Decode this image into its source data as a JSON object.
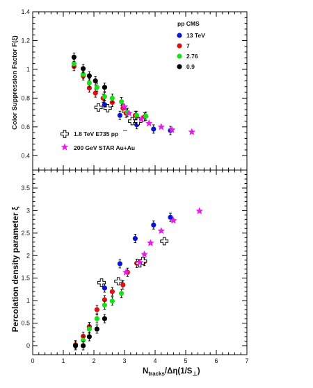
{
  "chart_data": [
    {
      "type": "scatter",
      "panel": "top",
      "ylabel": "Color Suppression Factor F(ξ)",
      "ylim": [
        0.3,
        1.4
      ],
      "yticks": [
        "0.4",
        "0.6",
        "0.8",
        "1",
        "1.2",
        "1.4"
      ],
      "xlim": [
        0,
        7
      ],
      "legend_title": "pp CMS",
      "series": [
        {
          "name": "13 TeV",
          "color": "#0a14d6",
          "marker": "circle",
          "error_bars": true,
          "points": [
            [
              2.35,
              0.755
            ],
            [
              2.85,
              0.68
            ],
            [
              3.4,
              0.615
            ],
            [
              3.95,
              0.585
            ],
            [
              4.5,
              0.575
            ]
          ]
        },
        {
          "name": "7",
          "color": "#e01010",
          "marker": "circle",
          "error_bars": true,
          "points": [
            [
              1.35,
              1.02
            ],
            [
              1.65,
              0.955
            ],
            [
              1.85,
              0.87
            ],
            [
              2.05,
              0.835
            ],
            [
              2.3,
              0.8
            ],
            [
              2.6,
              0.77
            ],
            [
              2.95,
              0.73
            ],
            [
              3.05,
              0.695
            ],
            [
              3.35,
              0.68
            ],
            [
              3.65,
              0.67
            ]
          ]
        },
        {
          "name": "2.76",
          "color": "#19e019",
          "marker": "circle",
          "error_bars": true,
          "points": [
            [
              1.35,
              1.04
            ],
            [
              1.65,
              0.965
            ],
            [
              1.85,
              0.905
            ],
            [
              2.1,
              0.875
            ],
            [
              2.35,
              0.81
            ],
            [
              2.6,
              0.8
            ],
            [
              2.9,
              0.775
            ],
            [
              3.1,
              0.7
            ],
            [
              3.4,
              0.68
            ],
            [
              3.7,
              0.675
            ]
          ]
        },
        {
          "name": "0.9",
          "color": "#000000",
          "marker": "circle",
          "error_bars": true,
          "points": [
            [
              1.35,
              1.085
            ],
            [
              1.65,
              1.005
            ],
            [
              1.85,
              0.955
            ],
            [
              2.05,
              0.92
            ],
            [
              2.35,
              0.875
            ]
          ]
        },
        {
          "name": "1.8 TeV E735  pp",
          "color": "#000000",
          "marker": "open-cross",
          "error_bars": false,
          "points": [
            [
              2.15,
              0.735
            ],
            [
              2.45,
              0.73
            ],
            [
              3.25,
              0.64
            ],
            [
              3.45,
              0.64
            ]
          ]
        },
        {
          "name": "200 GeV STAR Au+Au",
          "color": "#e81ee8",
          "marker": "star",
          "error_bars": false,
          "points": [
            [
              3.0,
              0.74
            ],
            [
              3.15,
              0.695
            ],
            [
              3.55,
              0.655
            ],
            [
              3.8,
              0.625
            ],
            [
              4.2,
              0.6
            ],
            [
              4.55,
              0.58
            ],
            [
              5.2,
              0.565
            ]
          ]
        }
      ]
    },
    {
      "type": "scatter",
      "panel": "bottom",
      "ylabel": "Percolation density parameter  ξ",
      "xlabel": "N_tracks/Δη(1/S_⊥)",
      "xlabel_main": "N",
      "xlabel_sub": "tracks",
      "xlabel_rest": "/Δη(1/S",
      "xlabel_sub2": "⊥",
      "xlabel_end": ")",
      "ylim": [
        -0.2,
        3.9
      ],
      "yticks": [
        "0",
        "0.5",
        "1",
        "1.5",
        "2",
        "2.5",
        "3",
        "3.5"
      ],
      "xlim": [
        0,
        7
      ],
      "xticks": [
        "0",
        "1",
        "2",
        "3",
        "4",
        "5",
        "6",
        "7"
      ],
      "series": [
        {
          "name": "13 TeV",
          "color": "#0a14d6",
          "marker": "circle",
          "error_bars": true,
          "points": [
            [
              1.85,
              0.42
            ],
            [
              2.35,
              1.28
            ],
            [
              2.85,
              1.82
            ],
            [
              3.35,
              2.38
            ],
            [
              3.95,
              2.68
            ],
            [
              4.5,
              2.85
            ]
          ]
        },
        {
          "name": "7",
          "color": "#e01010",
          "marker": "circle",
          "error_bars": true,
          "points": [
            [
              1.4,
              0.02
            ],
            [
              1.65,
              0.21
            ],
            [
              1.85,
              0.42
            ],
            [
              2.1,
              0.8
            ],
            [
              2.35,
              1.02
            ],
            [
              2.6,
              1.2
            ],
            [
              2.95,
              1.35
            ],
            [
              3.1,
              1.63
            ],
            [
              3.4,
              1.83
            ],
            [
              3.65,
              1.87
            ]
          ]
        },
        {
          "name": "2.76",
          "color": "#19e019",
          "marker": "circle",
          "error_bars": true,
          "points": [
            [
              1.65,
              0.12
            ],
            [
              1.85,
              0.37
            ],
            [
              2.1,
              0.6
            ],
            [
              2.35,
              0.9
            ],
            [
              2.6,
              0.99
            ],
            [
              2.9,
              1.16
            ]
          ]
        },
        {
          "name": "0.9",
          "color": "#000000",
          "marker": "circle",
          "error_bars": true,
          "points": [
            [
              1.4,
              0.0
            ],
            [
              1.65,
              0.0
            ],
            [
              1.85,
              0.2
            ],
            [
              2.1,
              0.37
            ],
            [
              2.35,
              0.6
            ]
          ]
        },
        {
          "name": "1.8 TeV E735  pp",
          "color": "#000000",
          "marker": "open-cross",
          "error_bars": false,
          "points": [
            [
              2.25,
              1.4
            ],
            [
              2.8,
              1.43
            ],
            [
              3.5,
              1.83
            ],
            [
              3.6,
              1.88
            ],
            [
              4.3,
              2.32
            ]
          ]
        },
        {
          "name": "200 GeV STAR Au+Au",
          "color": "#e81ee8",
          "marker": "star",
          "error_bars": false,
          "points": [
            [
              3.05,
              1.63
            ],
            [
              3.5,
              1.85
            ],
            [
              3.65,
              2.03
            ],
            [
              3.85,
              2.28
            ],
            [
              4.2,
              2.55
            ],
            [
              4.6,
              2.78
            ],
            [
              5.45,
              2.99
            ]
          ]
        }
      ]
    }
  ]
}
